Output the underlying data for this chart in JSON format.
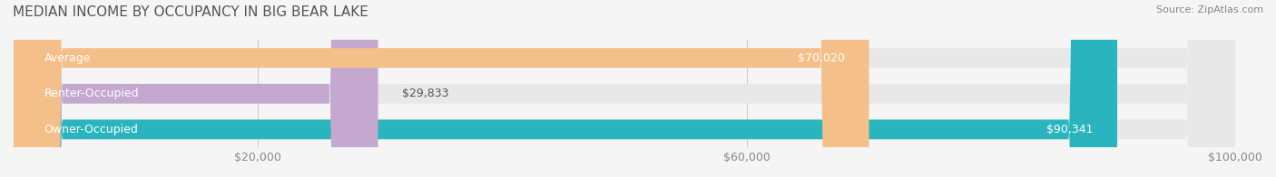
{
  "title": "MEDIAN INCOME BY OCCUPANCY IN BIG BEAR LAKE",
  "source": "Source: ZipAtlas.com",
  "categories": [
    "Owner-Occupied",
    "Renter-Occupied",
    "Average"
  ],
  "values": [
    90341,
    29833,
    70020
  ],
  "bar_colors": [
    "#2ab5be",
    "#c4a8d0",
    "#f5bf8a"
  ],
  "bar_labels": [
    "$90,341",
    "$29,833",
    "$70,020"
  ],
  "label_inside": [
    true,
    false,
    true
  ],
  "xlim": [
    0,
    100000
  ],
  "xticks": [
    0,
    20000,
    60000,
    100000
  ],
  "xticklabels": [
    "",
    "$20,000",
    "$60,000",
    "$100,000"
  ],
  "background_color": "#f5f5f5",
  "bar_background_color": "#e8e8e8",
  "title_fontsize": 11,
  "label_fontsize": 9,
  "tick_fontsize": 9
}
